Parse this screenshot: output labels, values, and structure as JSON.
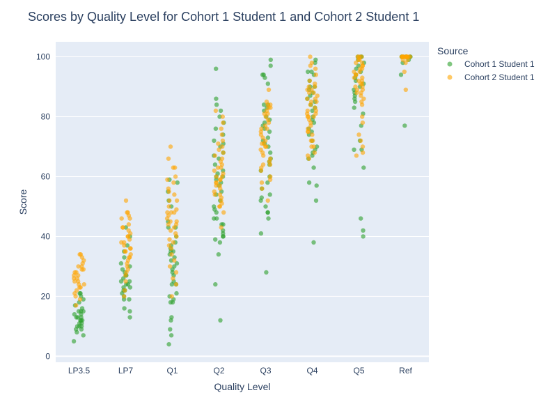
{
  "chart_data": {
    "type": "scatter",
    "title": "Scores by Quality Level for Cohort 1 Student 1 and Cohort 2 Student 1",
    "xlabel": "Quality Level",
    "ylabel": "Score",
    "categories": [
      "LP3.5",
      "LP7",
      "Q1",
      "Q2",
      "Q3",
      "Q4",
      "Q5",
      "Ref"
    ],
    "yticks": [
      0,
      20,
      40,
      60,
      80,
      100
    ],
    "ylim": [
      -2,
      105
    ],
    "grid": true,
    "legend": {
      "title": "Source",
      "placement": "top-right"
    },
    "series": [
      {
        "name": "Cohort 1 Student 1",
        "color": "#2ca02c",
        "points": {
          "LP3.5": [
            5,
            7,
            8,
            9,
            9,
            10,
            10,
            10,
            11,
            11,
            12,
            12,
            12,
            13,
            13,
            13,
            14,
            14,
            15,
            15,
            15,
            16,
            17,
            18,
            19,
            20,
            21,
            21
          ],
          "LP7": [
            13,
            15,
            16,
            19,
            19,
            20,
            21,
            22,
            22,
            23,
            23,
            24,
            24,
            25,
            25,
            26,
            27,
            27,
            28,
            29,
            30,
            31,
            33,
            35,
            37,
            40,
            43
          ],
          "Q1": [
            4,
            7,
            9,
            12,
            13,
            18,
            18,
            19,
            20,
            21,
            24,
            24,
            25,
            27,
            28,
            29,
            30,
            31,
            32,
            33,
            34,
            35,
            35,
            36,
            37,
            38,
            40,
            43,
            43,
            45,
            50,
            52,
            55,
            58,
            59
          ],
          "Q2": [
            12,
            24,
            34,
            38,
            39,
            40,
            40,
            41,
            42,
            44,
            44,
            46,
            46,
            48,
            49,
            50,
            52,
            54,
            55,
            57,
            58,
            59,
            60,
            60,
            61,
            62,
            64,
            66,
            67,
            68,
            70,
            71,
            72,
            74,
            76,
            78,
            80,
            82,
            84,
            86,
            96
          ],
          "Q3": [
            28,
            41,
            46,
            48,
            48,
            50,
            52,
            53,
            54,
            56,
            58,
            60,
            62,
            64,
            65,
            66,
            68,
            70,
            71,
            72,
            73,
            75,
            76,
            77,
            78,
            79,
            80,
            82,
            83,
            84,
            84,
            91,
            93,
            94,
            94,
            97,
            99
          ],
          "Q4": [
            38,
            52,
            57,
            58,
            63,
            66,
            67,
            68,
            69,
            70,
            72,
            74,
            75,
            76,
            78,
            79,
            80,
            82,
            83,
            84,
            85,
            86,
            87,
            88,
            89,
            90,
            90,
            92,
            94,
            95,
            95,
            98,
            99
          ],
          "Q5": [
            40,
            42,
            46,
            63,
            69,
            69,
            72,
            77,
            81,
            83,
            85,
            86,
            87,
            88,
            89,
            90,
            91,
            92,
            93,
            94,
            95,
            96,
            97,
            98,
            99,
            100,
            100,
            100
          ],
          "Ref": [
            77,
            94,
            98,
            99,
            100,
            100,
            100,
            100,
            100
          ]
        }
      },
      {
        "name": "Cohort 2 Student 1",
        "color": "#ffa500",
        "points": {
          "LP3.5": [
            17,
            19,
            20,
            21,
            22,
            23,
            23,
            24,
            24,
            25,
            25,
            26,
            26,
            27,
            27,
            28,
            28,
            29,
            29,
            30,
            30,
            31,
            32,
            33,
            34,
            34
          ],
          "LP7": [
            20,
            22,
            25,
            27,
            28,
            29,
            30,
            31,
            32,
            33,
            33,
            34,
            35,
            35,
            36,
            36,
            37,
            38,
            38,
            39,
            40,
            40,
            41,
            42,
            43,
            43,
            44,
            46,
            46,
            47,
            48,
            48,
            52
          ],
          "Q1": [
            20,
            24,
            26,
            28,
            30,
            32,
            34,
            36,
            37,
            38,
            39,
            40,
            41,
            42,
            43,
            44,
            44,
            45,
            45,
            46,
            47,
            48,
            48,
            48,
            49,
            50,
            52,
            52,
            54,
            55,
            56,
            58,
            59,
            60,
            63,
            63,
            66,
            70
          ],
          "Q2": [
            43,
            48,
            50,
            50,
            51,
            52,
            53,
            54,
            54,
            55,
            56,
            57,
            57,
            58,
            58,
            59,
            59,
            60,
            60,
            61,
            62,
            63,
            63,
            64,
            65,
            66,
            67,
            68,
            69,
            70,
            71,
            72,
            74,
            76,
            78,
            80,
            82
          ],
          "Q3": [
            52,
            56,
            58,
            59,
            60,
            62,
            63,
            64,
            64,
            65,
            66,
            67,
            68,
            69,
            70,
            70,
            71,
            71,
            72,
            73,
            74,
            75,
            76,
            76,
            77,
            78,
            79,
            80,
            81,
            81,
            82,
            83,
            83,
            84,
            84,
            85,
            89
          ],
          "Q4": [
            66,
            67,
            68,
            70,
            70,
            72,
            72,
            74,
            75,
            75,
            76,
            77,
            78,
            79,
            80,
            80,
            80,
            81,
            81,
            82,
            82,
            83,
            84,
            85,
            85,
            86,
            86,
            87,
            88,
            88,
            89,
            89,
            90,
            90,
            91,
            92,
            94,
            96,
            97,
            98,
            100
          ],
          "Q5": [
            67,
            68,
            70,
            72,
            74,
            78,
            80,
            84,
            85,
            86,
            87,
            88,
            88,
            89,
            89,
            90,
            90,
            91,
            91,
            92,
            92,
            93,
            93,
            94,
            94,
            95,
            95,
            96,
            96,
            97,
            97,
            98,
            98,
            99,
            99,
            100,
            100,
            100
          ],
          "Ref": [
            89,
            95,
            98,
            99,
            99,
            100,
            100,
            100,
            100,
            100,
            100,
            100,
            100,
            100,
            100,
            100,
            100,
            100,
            100,
            100
          ]
        }
      }
    ]
  }
}
